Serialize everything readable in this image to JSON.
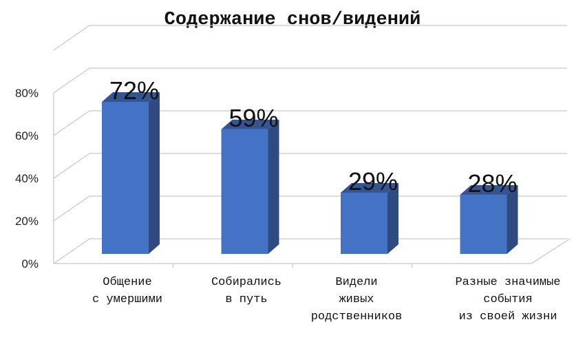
{
  "chart_data": {
    "type": "bar",
    "style": "3d-column",
    "title": "Содержание снов/видений",
    "xlabel": "",
    "ylabel": "",
    "categories": [
      "Общение с умершими",
      "Собирались в путь",
      "Видели живых родственников",
      "Разные значимые события из своей жизни"
    ],
    "values": [
      72,
      59,
      29,
      28
    ],
    "data_labels": [
      "72%",
      "59%",
      "29%",
      "28%"
    ],
    "yticks": [
      "0%",
      "20%",
      "40%",
      "60%",
      "80%"
    ],
    "ylim": [
      0,
      80
    ],
    "grid": true,
    "legend": null,
    "bar_color": "#4472C4",
    "bar_side_color": "#2E4A80",
    "bar_top_color": "#34558F"
  },
  "ui": {
    "title": "Содержание снов/видений",
    "category_lines": [
      "Общение\nс умершими",
      "Собирались\nв путь",
      "Видели\nживых\nродственников",
      "Разные значимые\nсобытия\nиз своей жизни"
    ]
  }
}
